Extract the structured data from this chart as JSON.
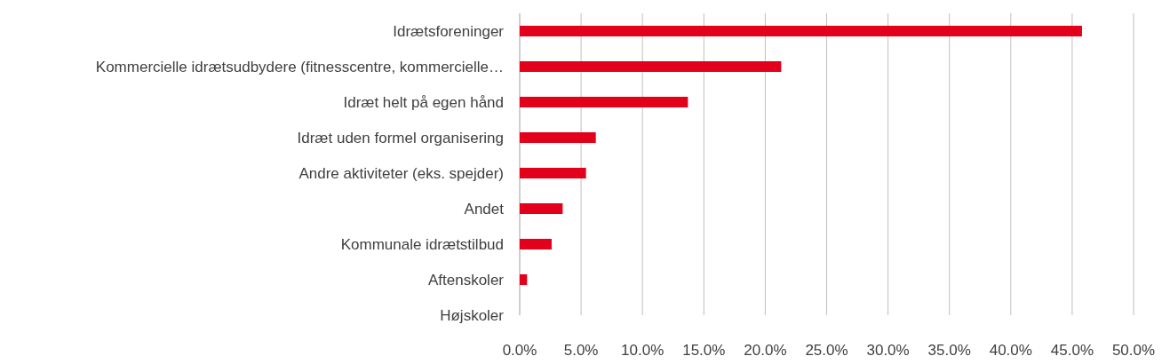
{
  "chart_data": {
    "type": "bar",
    "orientation": "horizontal",
    "categories": [
      "Idrætsforeninger",
      "Kommercielle idrætsudbydere (fitnesscentre, kommercielle…",
      "Idræt helt på egen hånd",
      "Idræt uden formel organisering",
      "Andre aktiviteter (eks. spejder)",
      "Andet",
      "Kommunale idrætstilbud",
      "Aftenskoler",
      "Højskoler"
    ],
    "values": [
      45.8,
      21.3,
      13.7,
      6.2,
      5.4,
      3.5,
      2.6,
      0.6,
      0
    ],
    "color": "#e2001a",
    "xlim": [
      0,
      50
    ],
    "xticks": [
      {
        "value": 0,
        "label": "0.0%"
      },
      {
        "value": 5,
        "label": "5.0%"
      },
      {
        "value": 10,
        "label": "10.0%"
      },
      {
        "value": 15,
        "label": "15.0%"
      },
      {
        "value": 20,
        "label": "20.0%"
      },
      {
        "value": 25,
        "label": "25.0%"
      },
      {
        "value": 30,
        "label": "30.0%"
      },
      {
        "value": 35,
        "label": "35.0%"
      },
      {
        "value": 40,
        "label": "40.0%"
      },
      {
        "value": 45,
        "label": "45.0%"
      },
      {
        "value": 50,
        "label": "50.0%"
      }
    ],
    "grid": "x"
  }
}
